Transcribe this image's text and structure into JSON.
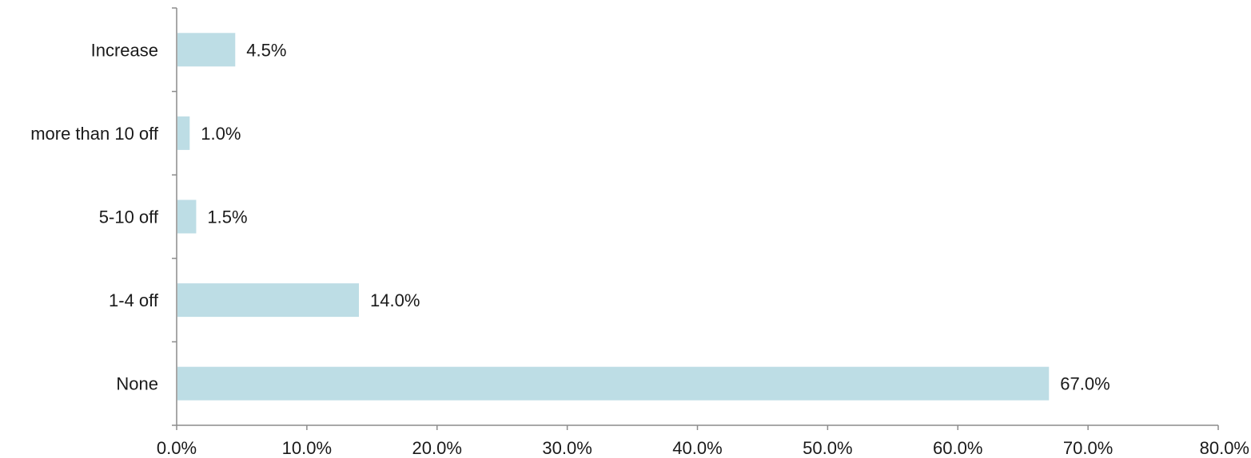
{
  "chart_data": {
    "type": "bar",
    "orientation": "horizontal",
    "categories": [
      "Increase",
      "more than 10 off",
      "5-10 off",
      "1-4 off",
      "None"
    ],
    "values": [
      4.5,
      1.0,
      1.5,
      14.0,
      67.0
    ],
    "data_labels": [
      "4.5%",
      "1.0%",
      "1.5%",
      "14.0%",
      "67.0%"
    ],
    "title": "",
    "xlabel": "",
    "ylabel": "",
    "xlim": [
      0,
      80
    ],
    "x_ticks": [
      0,
      10,
      20,
      30,
      40,
      50,
      60,
      70,
      80
    ],
    "x_tick_labels": [
      "0.0%",
      "10.0%",
      "20.0%",
      "30.0%",
      "40.0%",
      "50.0%",
      "60.0%",
      "70.0%",
      "80.0%"
    ],
    "grid": false,
    "legend": "none",
    "colors": {
      "bar": "#bddde5",
      "axis": "#8c8c8c",
      "text": "#1a1a1a"
    }
  }
}
